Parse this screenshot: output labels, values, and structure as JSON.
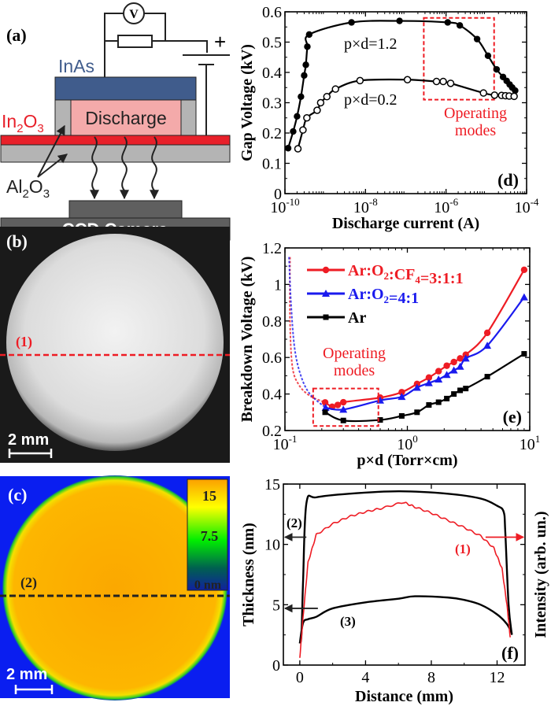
{
  "panel_a": {
    "label": "(a)",
    "voltmeter": "V",
    "plus": "+",
    "inas": "InAs",
    "discharge": "Discharge",
    "in2o3": {
      "main": "In",
      "sub1": "2",
      "mid": "O",
      "sub2": "3"
    },
    "al2o3": {
      "main": "Al",
      "sub1": "2",
      "mid": "O",
      "sub2": "3"
    },
    "camera": "CCD Camera",
    "colors": {
      "inas": "#405c8c",
      "discharge": "#f4aaaa",
      "in2o3": "#e8202a",
      "al2o3": "#b4b4b4",
      "camera": "#5f5f5f"
    }
  },
  "panel_b": {
    "label": "(b)",
    "line_label": "(1)",
    "scale": "2 mm"
  },
  "panel_c": {
    "label": "(c)",
    "line_label": "(2)",
    "scale": "2 mm",
    "colorbar": {
      "max": "15",
      "mid": "7.5",
      "min": "0 nm"
    }
  },
  "chart_data": [
    {
      "id": "d",
      "type": "line",
      "panel_label": "(d)",
      "xlabel": "Discharge current (A)",
      "ylabel": "Gap Voltage (kV)",
      "xscale": "log",
      "xlim": [
        1e-10,
        0.0001
      ],
      "ylim": [
        0,
        0.6
      ],
      "xticks": [
        {
          "base": "10",
          "exp": "-10",
          "v": 1e-10
        },
        {
          "base": "10",
          "exp": "-8",
          "v": 1e-08
        },
        {
          "base": "10",
          "exp": "-6",
          "v": 1e-06
        },
        {
          "base": "10",
          "exp": "-4",
          "v": 0.0001
        }
      ],
      "yticks": [
        "0",
        "0.1",
        "0.2",
        "0.3",
        "0.4",
        "0.5",
        "0.6"
      ],
      "annotation": {
        "text1": "Operating",
        "text2": "modes",
        "box_x": [
          2.8e-07,
          1.56e-05
        ],
        "box_y": [
          0.31,
          0.58
        ]
      },
      "series": [
        {
          "name": "p×d=1.2",
          "marker": "filled-circle",
          "color": "#000000",
          "points": [
            [
              1.2e-10,
              0.15
            ],
            [
              1.6e-10,
              0.205
            ],
            [
              2e-10,
              0.255
            ],
            [
              2.5e-10,
              0.32
            ],
            [
              3e-10,
              0.39
            ],
            [
              3.3e-10,
              0.425
            ],
            [
              3.6e-10,
              0.485
            ],
            [
              4e-10,
              0.525
            ],
            [
              4.5e-09,
              0.565
            ],
            [
              7e-08,
              0.57
            ],
            [
              1.1e-06,
              0.565
            ],
            [
              2.2e-06,
              0.555
            ],
            [
              5.9e-06,
              0.51
            ],
            [
              1.1e-05,
              0.455
            ],
            [
              1.8e-05,
              0.41
            ],
            [
              2.6e-05,
              0.385
            ],
            [
              3.2e-05,
              0.372
            ],
            [
              3.8e-05,
              0.36
            ],
            [
              4.4e-05,
              0.35
            ],
            [
              5.2e-05,
              0.34
            ]
          ]
        },
        {
          "name": "p×d=0.2",
          "marker": "open-circle",
          "color": "#000000",
          "points": [
            [
              2.1e-10,
              0.148
            ],
            [
              2.8e-10,
              0.21
            ],
            [
              3.5e-10,
              0.25
            ],
            [
              6.3e-10,
              0.275
            ],
            [
              7.7e-10,
              0.3
            ],
            [
              1.1e-09,
              0.32
            ],
            [
              1.8e-09,
              0.345
            ],
            [
              7.3e-09,
              0.373
            ],
            [
              1.1e-07,
              0.376
            ],
            [
              5.8e-07,
              0.37
            ],
            [
              8.5e-07,
              0.37
            ],
            [
              1.3e-06,
              0.364
            ],
            [
              8.5e-06,
              0.332
            ],
            [
              1.6e-05,
              0.325
            ],
            [
              2.4e-05,
              0.324
            ],
            [
              3e-05,
              0.323
            ],
            [
              3.7e-05,
              0.322
            ],
            [
              4.9e-05,
              0.321
            ]
          ]
        }
      ]
    },
    {
      "id": "e",
      "type": "line",
      "panel_label": "(e)",
      "xlabel": "p×d (Torr×cm)",
      "ylabel": "Breakdown Voltage (kV)",
      "xscale": "log",
      "xlim": [
        0.1,
        10
      ],
      "ylim": [
        0.2,
        1.2
      ],
      "xticks": [
        {
          "base": "10",
          "exp": "-1",
          "v": 0.1
        },
        {
          "base": "10",
          "exp": "0",
          "v": 1
        },
        {
          "base": "10",
          "exp": "1",
          "v": 10
        }
      ],
      "yticks": [
        "0.2",
        "0.4",
        "0.6",
        "0.8",
        "1",
        "1.2"
      ],
      "legend_position": "top-left",
      "annotation": {
        "text1": "Operating",
        "text2": "modes",
        "box_x": [
          0.17,
          0.58
        ],
        "box_y": [
          0.225,
          0.43
        ]
      },
      "series": [
        {
          "name": "Ar:O₂:CF₄=3:1:1",
          "legend": {
            "a": "Ar:O",
            "s1": "2",
            "b": ":CF",
            "s2": "4",
            "c": "=3:1:1"
          },
          "marker": "circle",
          "color": "#ee1c24",
          "points": [
            [
              0.213,
              0.354
            ],
            [
              0.243,
              0.33
            ],
            [
              0.27,
              0.34
            ],
            [
              0.3,
              0.355
            ],
            [
              0.6,
              0.38
            ],
            [
              0.9,
              0.41
            ],
            [
              1.2,
              0.455
            ],
            [
              1.5,
              0.49
            ],
            [
              1.8,
              0.525
            ],
            [
              2.1,
              0.555
            ],
            [
              2.4,
              0.575
            ],
            [
              2.7,
              0.595
            ],
            [
              3.0,
              0.615
            ],
            [
              4.5,
              0.735
            ],
            [
              9.0,
              1.08
            ]
          ],
          "extrapolation": [
            [
              0.11,
              1.15
            ],
            [
              0.11,
              0.8
            ],
            [
              0.115,
              0.55
            ],
            [
              0.13,
              0.45
            ],
            [
              0.16,
              0.39
            ],
            [
              0.213,
              0.354
            ]
          ]
        },
        {
          "name": "Ar:O₂=4:1",
          "legend": {
            "a": "Ar:O",
            "s1": "2",
            "b": "=4:1",
            "s2": "",
            "c": ""
          },
          "marker": "triangle",
          "color": "#1a1aee",
          "points": [
            [
              0.215,
              0.325
            ],
            [
              0.3,
              0.315
            ],
            [
              0.6,
              0.365
            ],
            [
              0.9,
              0.385
            ],
            [
              1.2,
              0.435
            ],
            [
              1.5,
              0.46
            ],
            [
              1.8,
              0.48
            ],
            [
              2.1,
              0.505
            ],
            [
              2.4,
              0.53
            ],
            [
              2.7,
              0.55
            ],
            [
              3.0,
              0.595
            ],
            [
              4.5,
              0.665
            ],
            [
              9.0,
              0.93
            ]
          ],
          "extrapolation": [
            [
              0.108,
              1.15
            ],
            [
              0.112,
              0.9
            ],
            [
              0.12,
              0.65
            ],
            [
              0.135,
              0.5
            ],
            [
              0.16,
              0.4
            ],
            [
              0.215,
              0.325
            ]
          ]
        },
        {
          "name": "Ar",
          "legend": {
            "a": "Ar",
            "s1": "",
            "b": "",
            "s2": "",
            "c": ""
          },
          "marker": "square",
          "color": "#000000",
          "points": [
            [
              0.213,
              0.3
            ],
            [
              0.3,
              0.255
            ],
            [
              0.6,
              0.258
            ],
            [
              0.9,
              0.28
            ],
            [
              1.2,
              0.3
            ],
            [
              1.5,
              0.34
            ],
            [
              1.8,
              0.355
            ],
            [
              2.1,
              0.375
            ],
            [
              2.4,
              0.4
            ],
            [
              2.7,
              0.42
            ],
            [
              3.0,
              0.43
            ],
            [
              4.5,
              0.495
            ],
            [
              9.0,
              0.62
            ]
          ]
        }
      ]
    },
    {
      "id": "f",
      "type": "line",
      "panel_label": "(f)",
      "xlabel": "Distance (mm)",
      "ylabel": "Thickness (nm)",
      "ylabel_right": "Intensity (arb. un.)",
      "xlim": [
        -1,
        13.7
      ],
      "ylim": [
        0,
        15
      ],
      "xticks": [
        "0",
        "4",
        "8",
        "12"
      ],
      "yticks": [
        "0",
        "5",
        "10",
        "15"
      ],
      "series": [
        {
          "name": "(2)",
          "axis": "left",
          "color": "#000000",
          "points": [
            [
              0,
              1.8
            ],
            [
              0.1,
              2.5
            ],
            [
              0.2,
              7
            ],
            [
              0.4,
              13.4
            ],
            [
              1,
              13.9
            ],
            [
              3,
              14.2
            ],
            [
              6,
              14.4
            ],
            [
              9,
              14.2
            ],
            [
              11,
              13.8
            ],
            [
              12,
              13.2
            ],
            [
              12.4,
              12.7
            ],
            [
              12.5,
              11
            ],
            [
              12.7,
              5
            ],
            [
              12.9,
              2.5
            ]
          ]
        },
        {
          "name": "(3)",
          "axis": "left",
          "color": "#000000",
          "points": [
            [
              0,
              1.8
            ],
            [
              0.2,
              3.5
            ],
            [
              0.5,
              3.8
            ],
            [
              1,
              4.0
            ],
            [
              2,
              4.7
            ],
            [
              4,
              5.2
            ],
            [
              6,
              5.5
            ],
            [
              7,
              5.7
            ],
            [
              9,
              5.6
            ],
            [
              10,
              5.4
            ],
            [
              11,
              5.0
            ],
            [
              12,
              4.2
            ],
            [
              12.6,
              3.4
            ],
            [
              12.9,
              2.6
            ]
          ]
        },
        {
          "name": "(1)",
          "axis": "right",
          "color": "#ee1c24",
          "points": [
            [
              0,
              0.6
            ],
            [
              0.2,
              4
            ],
            [
              0.5,
              8.5
            ],
            [
              1,
              10.8
            ],
            [
              2,
              11.7
            ],
            [
              3,
              12.3
            ],
            [
              4,
              12.7
            ],
            [
              5,
              13
            ],
            [
              6.3,
              13.5
            ],
            [
              7,
              13.1
            ],
            [
              8,
              12.6
            ],
            [
              9,
              12
            ],
            [
              10,
              11.4
            ],
            [
              11,
              10.7
            ],
            [
              11.8,
              9.7
            ],
            [
              12.3,
              8
            ],
            [
              12.6,
              5
            ],
            [
              12.8,
              2.3
            ]
          ]
        }
      ]
    }
  ]
}
